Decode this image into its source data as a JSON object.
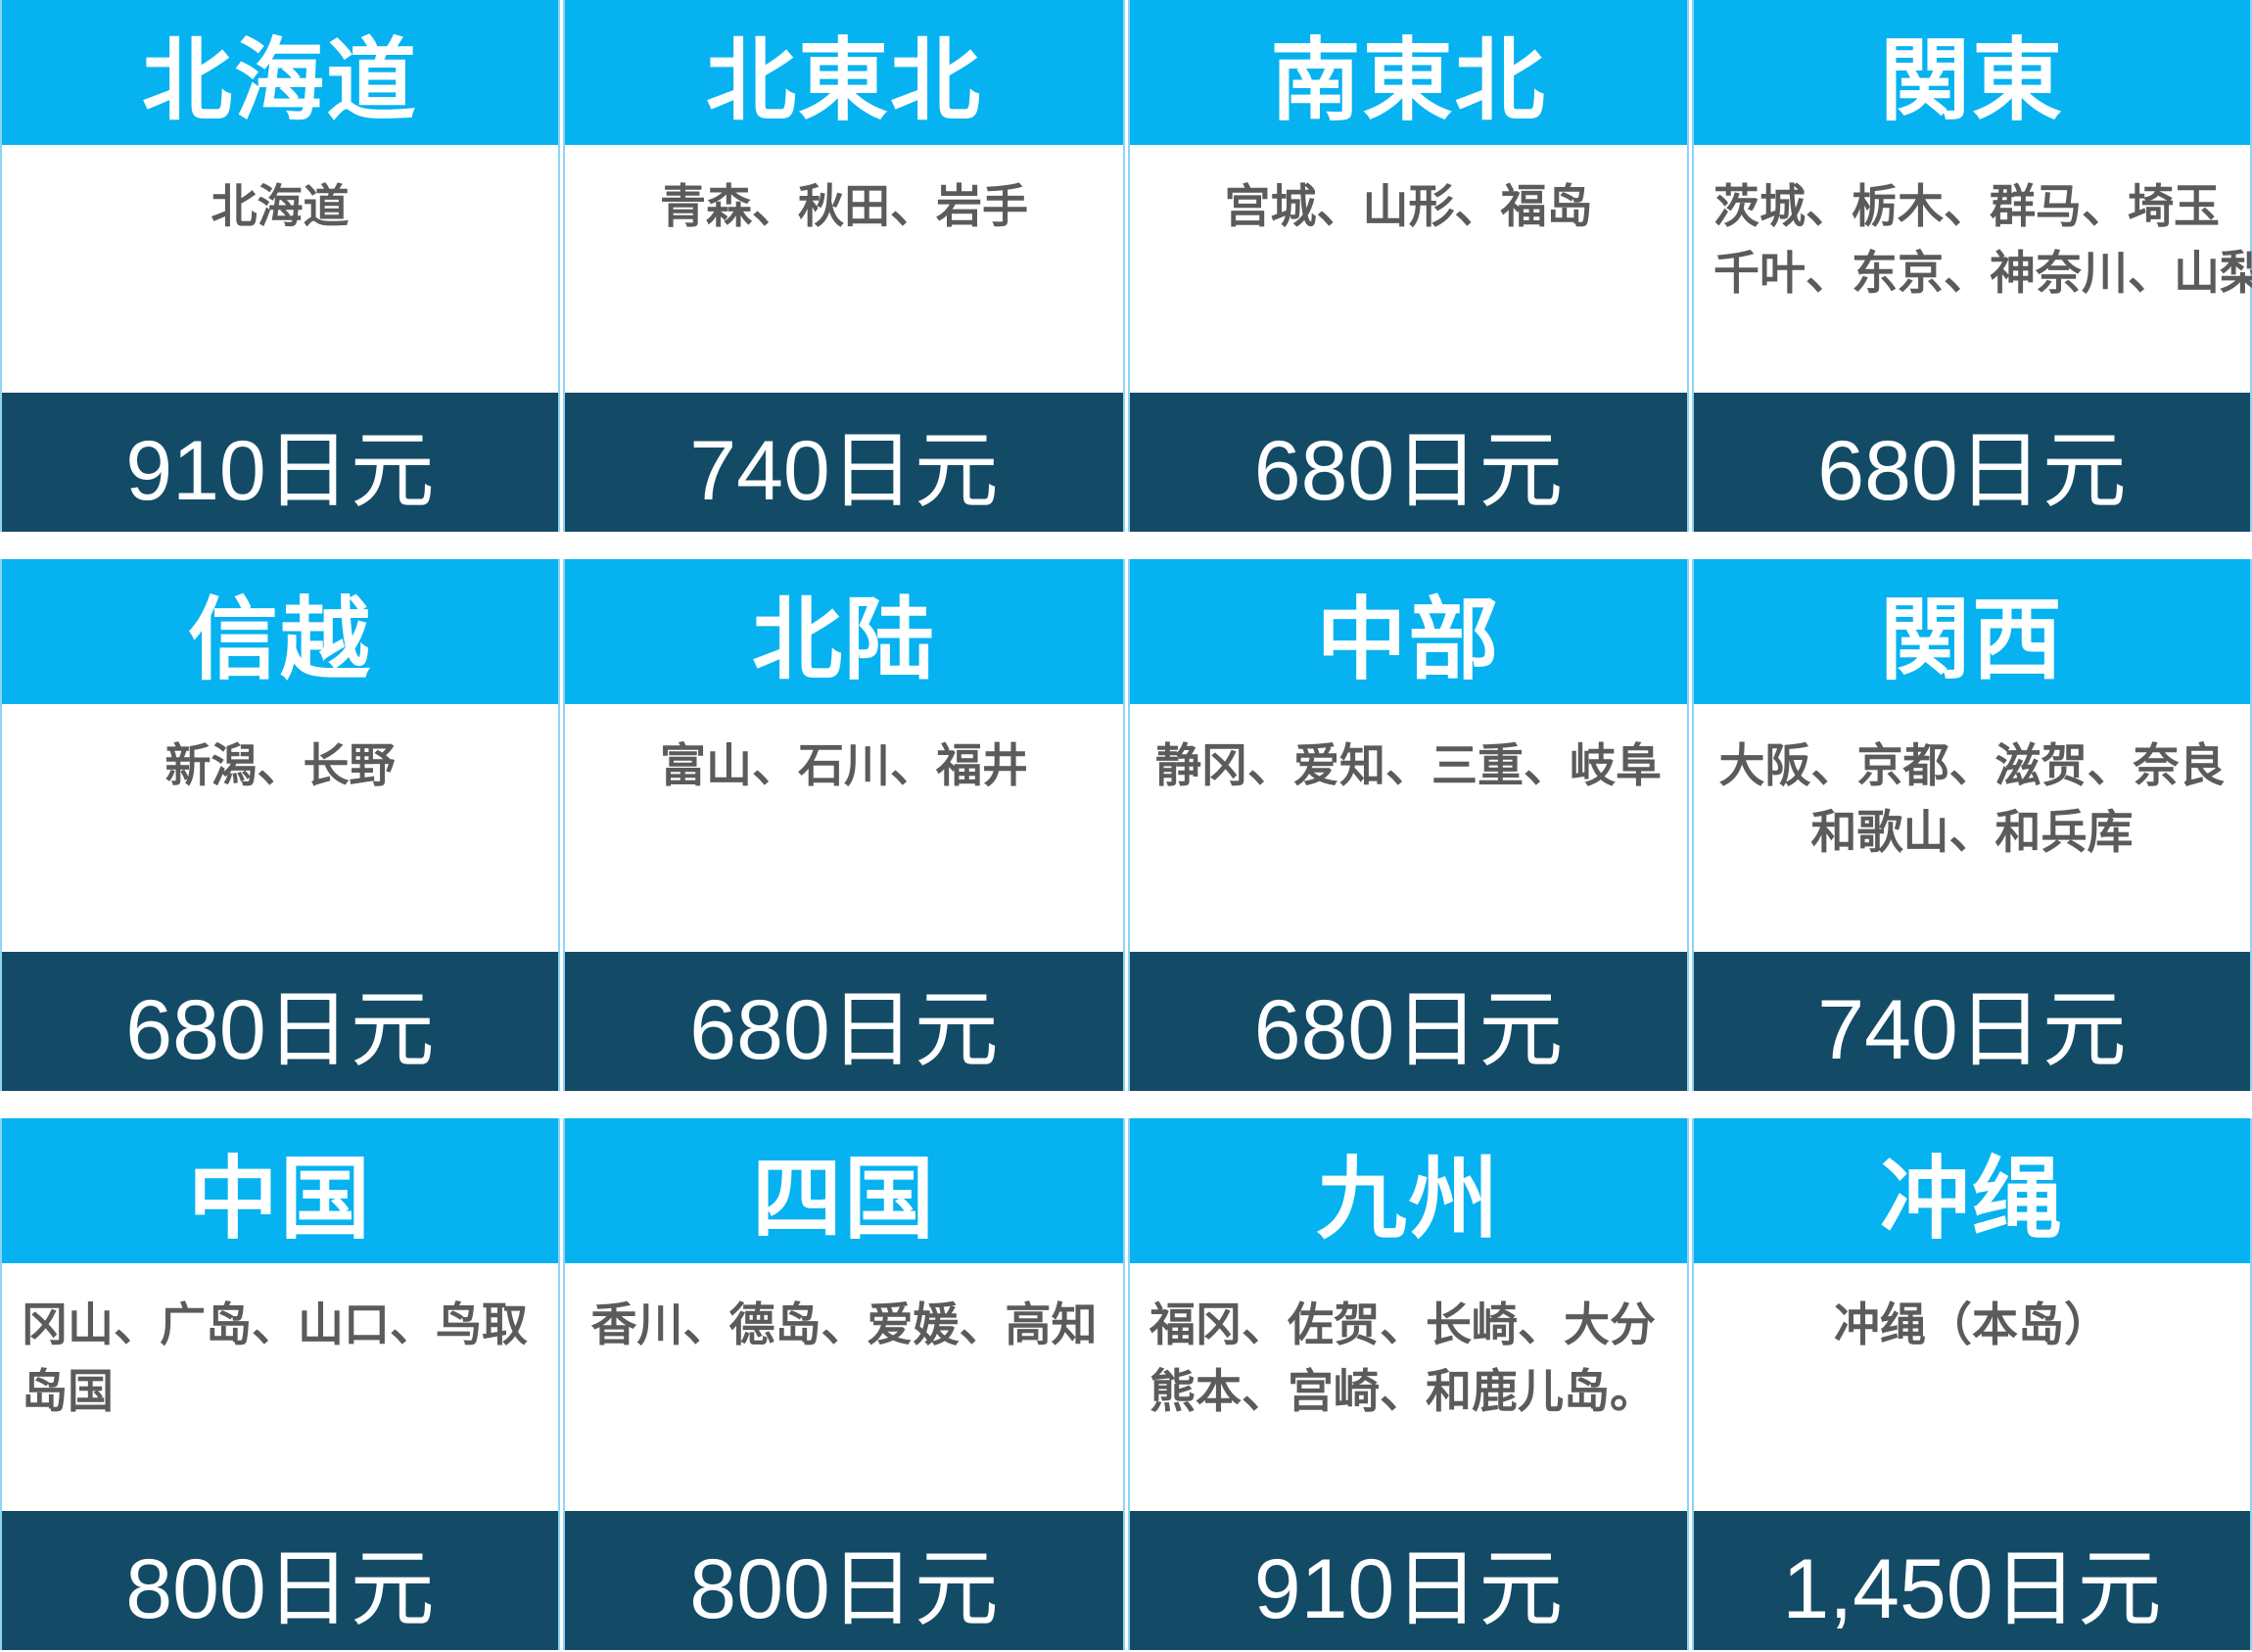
{
  "regions": [
    {
      "name": "北海道",
      "prefectures": [
        "北海道"
      ],
      "price": "910日元"
    },
    {
      "name": "北東北",
      "prefectures": [
        "青森、秋田、岩手"
      ],
      "price": "740日元"
    },
    {
      "name": "南東北",
      "prefectures": [
        "宫城、山形、福岛"
      ],
      "price": "680日元"
    },
    {
      "name": "関東",
      "prefectures": [
        "茨城、栃木、群马、埼玉",
        "千叶、东京、神奈川、山梨"
      ],
      "price": "680日元"
    },
    {
      "name": "信越",
      "prefectures": [
        "新潟、长野"
      ],
      "price": "680日元"
    },
    {
      "name": "北陆",
      "prefectures": [
        "富山、石川、福井"
      ],
      "price": "680日元"
    },
    {
      "name": "中部",
      "prefectures": [
        "静冈、爱知、三重、岐阜"
      ],
      "price": "680日元"
    },
    {
      "name": "関西",
      "prefectures": [
        "大阪、京都、滋贺、奈良",
        "和歌山、和兵库"
      ],
      "price": "740日元"
    },
    {
      "name": "中国",
      "prefectures": [
        "冈山、广岛、山口、鸟取",
        "岛国"
      ],
      "price": "800日元"
    },
    {
      "name": "四国",
      "prefectures": [
        "香川、德岛、爱媛、高知"
      ],
      "price": "800日元"
    },
    {
      "name": "九州",
      "prefectures": [
        "福冈、佐贺、长崎、大分",
        "熊本、宫崎、和鹿儿岛。"
      ],
      "price": "910日元"
    },
    {
      "name": "冲绳",
      "prefectures": [
        "冲绳（本岛）"
      ],
      "price": "1,450日元"
    }
  ]
}
